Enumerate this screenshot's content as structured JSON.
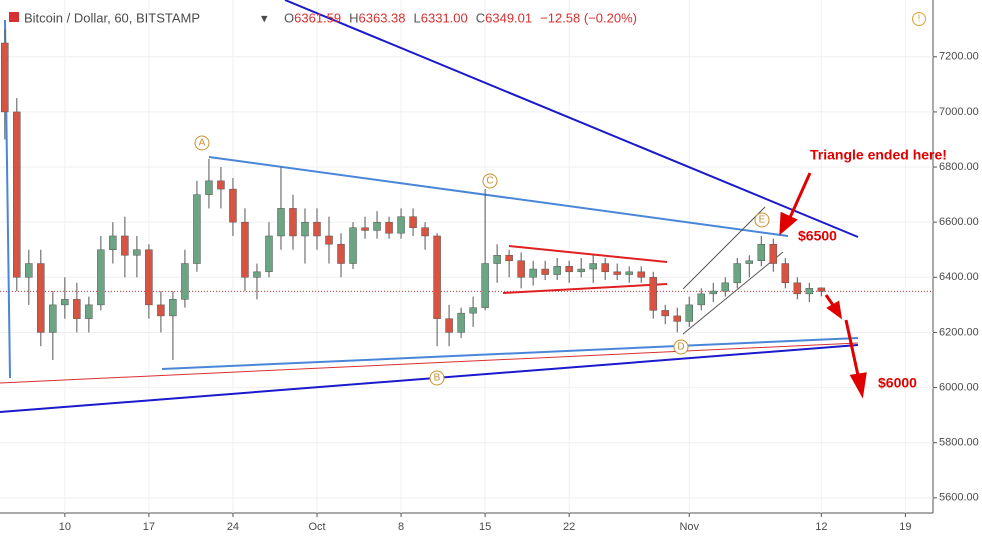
{
  "chart_data": {
    "type": "candlestick",
    "title": "Bitcoin / Dollar, 60, BITSTAMP",
    "ohlc_legend": [
      {
        "label": "O",
        "value": "6361.59"
      },
      {
        "label": "H",
        "value": "6363.38"
      },
      {
        "label": "L",
        "value": "6331.00"
      },
      {
        "label": "C",
        "value": "6349.01"
      },
      {
        "label": "",
        "value": "−12.58 (−0.20%)"
      }
    ],
    "annotations": [
      "Triangle ended here!",
      "$6500",
      "$6000"
    ],
    "wave_labels": [
      "A",
      "B",
      "C",
      "D",
      "E"
    ],
    "last_price": 6349.01,
    "up_color": "#6ba583",
    "down_color": "#d75442",
    "x": [
      5,
      6,
      7,
      8,
      9,
      10,
      11,
      12,
      13,
      14,
      15,
      16,
      17,
      18,
      19,
      20,
      21,
      22,
      23,
      24,
      25,
      26,
      27,
      28,
      29,
      30,
      31,
      32,
      33,
      34,
      35,
      36,
      37,
      38,
      39,
      40,
      41,
      42,
      43,
      44,
      45,
      46,
      47,
      48,
      49,
      50,
      51,
      52,
      53,
      54,
      55,
      56,
      57,
      58,
      59,
      60,
      61,
      62,
      63,
      64,
      65,
      66,
      67,
      68,
      69,
      70,
      71,
      72,
      73
    ],
    "open": [
      7250,
      7000,
      6400,
      6450,
      6200,
      6300,
      6320,
      6250,
      6300,
      6500,
      6550,
      6480,
      6500,
      6300,
      6260,
      6320,
      6450,
      6700,
      6750,
      6720,
      6600,
      6400,
      6420,
      6550,
      6650,
      6550,
      6600,
      6550,
      6520,
      6450,
      6580,
      6570,
      6600,
      6560,
      6620,
      6580,
      6550,
      6250,
      6200,
      6270,
      6290,
      6450,
      6480,
      6460,
      6400,
      6430,
      6410,
      6440,
      6420,
      6430,
      6450,
      6420,
      6410,
      6420,
      6400,
      6280,
      6260,
      6240,
      6300,
      6340,
      6350,
      6380,
      6450,
      6460,
      6520,
      6450,
      6380,
      6340,
      6361.59
    ],
    "high": [
      7300,
      7050,
      6500,
      6500,
      6350,
      6400,
      6380,
      6330,
      6550,
      6600,
      6620,
      6550,
      6520,
      6350,
      6350,
      6500,
      6750,
      6830,
      6800,
      6760,
      6650,
      6450,
      6600,
      6800,
      6700,
      6650,
      6650,
      6620,
      6560,
      6600,
      6620,
      6640,
      6620,
      6650,
      6650,
      6600,
      6560,
      6300,
      6290,
      6330,
      6720,
      6520,
      6500,
      6490,
      6460,
      6460,
      6470,
      6460,
      6470,
      6480,
      6470,
      6450,
      6440,
      6440,
      6420,
      6300,
      6290,
      6330,
      6360,
      6380,
      6400,
      6470,
      6480,
      6550,
      6540,
      6470,
      6400,
      6380,
      6363.38
    ],
    "low": [
      6900,
      6350,
      6300,
      6150,
      6100,
      6250,
      6200,
      6200,
      6280,
      6450,
      6400,
      6400,
      6250,
      6200,
      6100,
      6290,
      6420,
      6650,
      6650,
      6550,
      6350,
      6320,
      6400,
      6500,
      6500,
      6450,
      6500,
      6450,
      6400,
      6430,
      6540,
      6540,
      6540,
      6540,
      6550,
      6500,
      6150,
      6150,
      6180,
      6220,
      6280,
      6380,
      6400,
      6360,
      6370,
      6390,
      6390,
      6380,
      6400,
      6380,
      6390,
      6390,
      6380,
      6380,
      6250,
      6230,
      6200,
      6220,
      6280,
      6310,
      6330,
      6360,
      6400,
      6440,
      6420,
      6360,
      6320,
      6310,
      6331
    ],
    "close": [
      7000,
      6400,
      6450,
      6200,
      6300,
      6320,
      6250,
      6300,
      6500,
      6550,
      6480,
      6500,
      6300,
      6260,
      6320,
      6450,
      6700,
      6750,
      6720,
      6600,
      6400,
      6420,
      6550,
      6650,
      6550,
      6600,
      6550,
      6520,
      6450,
      6580,
      6570,
      6600,
      6560,
      6620,
      6580,
      6550,
      6250,
      6200,
      6270,
      6290,
      6450,
      6480,
      6460,
      6400,
      6430,
      6410,
      6440,
      6420,
      6430,
      6450,
      6420,
      6410,
      6420,
      6400,
      6280,
      6260,
      6240,
      6300,
      6340,
      6350,
      6380,
      6450,
      6460,
      6520,
      6450,
      6380,
      6340,
      6360,
      6349.01
    ],
    "xlim": [
      4.6,
      82.3
    ],
    "xticks": [
      {
        "value": 10,
        "label": "10"
      },
      {
        "value": 17,
        "label": "17"
      },
      {
        "value": 24,
        "label": "24"
      },
      {
        "value": 31,
        "label": "Oct"
      },
      {
        "value": 38,
        "label": "8"
      },
      {
        "value": 45,
        "label": "15"
      },
      {
        "value": 52,
        "label": "22"
      },
      {
        "value": 62,
        "label": "Nov"
      },
      {
        "value": 73,
        "label": "12"
      },
      {
        "value": 80,
        "label": "19"
      }
    ],
    "ylim": [
      5545,
      7406
    ],
    "yticks": [
      {
        "value": 5600,
        "label": "5600.00"
      },
      {
        "value": 5800,
        "label": "5800.00"
      },
      {
        "value": 6000,
        "label": "6000.00"
      },
      {
        "value": 6200,
        "label": "6200.00"
      },
      {
        "value": 6400,
        "label": "6400.00"
      },
      {
        "value": 6600,
        "label": "6600.00"
      },
      {
        "value": 6800,
        "label": "6800.00"
      },
      {
        "value": 7000,
        "label": "7000.00"
      },
      {
        "value": 7200,
        "label": "7200.00"
      }
    ]
  }
}
